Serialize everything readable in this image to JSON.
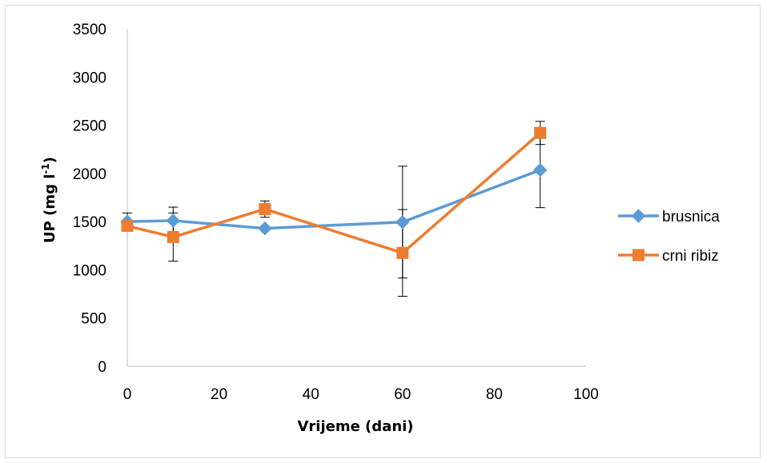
{
  "chart_data": {
    "type": "line",
    "title": "",
    "xlabel": "Vrijeme (dani)",
    "ylabel": {
      "base": "UP (mg l",
      "superscript": "-1",
      "close": ")"
    },
    "xlim": [
      0,
      100
    ],
    "ylim": [
      0,
      3500
    ],
    "xticks": [
      0,
      20,
      40,
      60,
      80,
      100
    ],
    "yticks": [
      0,
      500,
      1000,
      1500,
      2000,
      2500,
      3000,
      3500
    ],
    "grid": false,
    "legend_position": "right",
    "series": [
      {
        "name": "brusnica",
        "color": "#5b9bd5",
        "marker": "diamond",
        "x": [
          0,
          10,
          30,
          60,
          90
        ],
        "y": [
          1500,
          1510,
          1430,
          1495,
          2035
        ],
        "error": [
          90,
          140,
          0,
          580,
          390
        ]
      },
      {
        "name": "crni ribiz",
        "color": "#ed7d31",
        "marker": "square",
        "x": [
          0,
          10,
          30,
          60,
          90
        ],
        "y": [
          1455,
          1340,
          1630,
          1175,
          2420
        ],
        "error": [
          0,
          250,
          85,
          450,
          120
        ]
      }
    ]
  }
}
